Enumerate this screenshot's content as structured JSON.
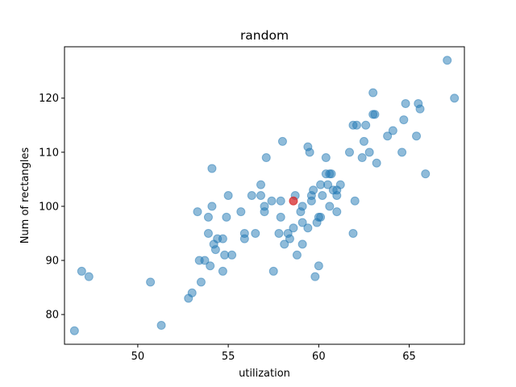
{
  "chart_data": {
    "type": "scatter",
    "title": "random",
    "xlabel": "utilization",
    "ylabel": "Num of rectangles",
    "xlim": [
      45.95,
      68.05
    ],
    "ylim": [
      74.5,
      129.5
    ],
    "xticks": [
      50,
      55,
      60,
      65
    ],
    "yticks": [
      80,
      90,
      100,
      110,
      120
    ],
    "grid": false,
    "legend": "none",
    "colors": {
      "points": "#1f77b4",
      "highlight": "#d62728"
    },
    "series": [
      {
        "points": [
          [
            46.5,
            77
          ],
          [
            46.9,
            88
          ],
          [
            47.3,
            87
          ],
          [
            50.7,
            86
          ],
          [
            51.3,
            78
          ],
          [
            52.8,
            83
          ],
          [
            53.0,
            84
          ],
          [
            53.3,
            99
          ],
          [
            53.4,
            90
          ],
          [
            53.5,
            86
          ],
          [
            53.7,
            90
          ],
          [
            53.9,
            98
          ],
          [
            53.9,
            95
          ],
          [
            54.0,
            89
          ],
          [
            54.1,
            107
          ],
          [
            54.1,
            100
          ],
          [
            54.2,
            93
          ],
          [
            54.3,
            92
          ],
          [
            54.4,
            94
          ],
          [
            54.7,
            94
          ],
          [
            54.7,
            88
          ],
          [
            54.8,
            91
          ],
          [
            54.9,
            98
          ],
          [
            55.0,
            102
          ],
          [
            55.2,
            91
          ],
          [
            55.7,
            99
          ],
          [
            55.9,
            95
          ],
          [
            55.9,
            94
          ],
          [
            56.3,
            102
          ],
          [
            56.5,
            95
          ],
          [
            56.8,
            104
          ],
          [
            56.8,
            102
          ],
          [
            57.0,
            100
          ],
          [
            57.0,
            99
          ],
          [
            57.1,
            109
          ],
          [
            57.4,
            101
          ],
          [
            57.5,
            88
          ],
          [
            57.8,
            95
          ],
          [
            57.9,
            101
          ],
          [
            57.9,
            98
          ],
          [
            58.0,
            112
          ],
          [
            58.1,
            93
          ],
          [
            58.3,
            95
          ],
          [
            58.4,
            94
          ],
          [
            58.6,
            96
          ],
          [
            58.7,
            102
          ],
          [
            58.8,
            91
          ],
          [
            59.0,
            99
          ],
          [
            59.1,
            100
          ],
          [
            59.1,
            97
          ],
          [
            59.1,
            93
          ],
          [
            59.4,
            111
          ],
          [
            59.4,
            96
          ],
          [
            59.5,
            110
          ],
          [
            59.6,
            102
          ],
          [
            59.6,
            101
          ],
          [
            59.7,
            103
          ],
          [
            59.8,
            87
          ],
          [
            59.9,
            97
          ],
          [
            60.0,
            89
          ],
          [
            60.0,
            98
          ],
          [
            60.1,
            104
          ],
          [
            60.1,
            98
          ],
          [
            60.2,
            102
          ],
          [
            60.4,
            106
          ],
          [
            60.4,
            109
          ],
          [
            60.5,
            104
          ],
          [
            60.6,
            100
          ],
          [
            60.6,
            106
          ],
          [
            60.7,
            106
          ],
          [
            60.8,
            103
          ],
          [
            61.0,
            102
          ],
          [
            61.0,
            99
          ],
          [
            61.0,
            103
          ],
          [
            61.2,
            104
          ],
          [
            61.7,
            110
          ],
          [
            61.9,
            115
          ],
          [
            61.9,
            95
          ],
          [
            62.0,
            101
          ],
          [
            62.1,
            115
          ],
          [
            62.4,
            109
          ],
          [
            62.5,
            112
          ],
          [
            62.6,
            115
          ],
          [
            62.8,
            110
          ],
          [
            63.0,
            117
          ],
          [
            63.0,
            121
          ],
          [
            63.1,
            117
          ],
          [
            63.2,
            108
          ],
          [
            63.8,
            113
          ],
          [
            64.1,
            114
          ],
          [
            64.6,
            110
          ],
          [
            64.7,
            116
          ],
          [
            64.8,
            119
          ],
          [
            65.4,
            113
          ],
          [
            65.5,
            119
          ],
          [
            65.6,
            118
          ],
          [
            65.9,
            106
          ],
          [
            67.1,
            127
          ],
          [
            67.5,
            120
          ]
        ]
      },
      {
        "points": [
          [
            58.6,
            101
          ]
        ]
      }
    ]
  }
}
